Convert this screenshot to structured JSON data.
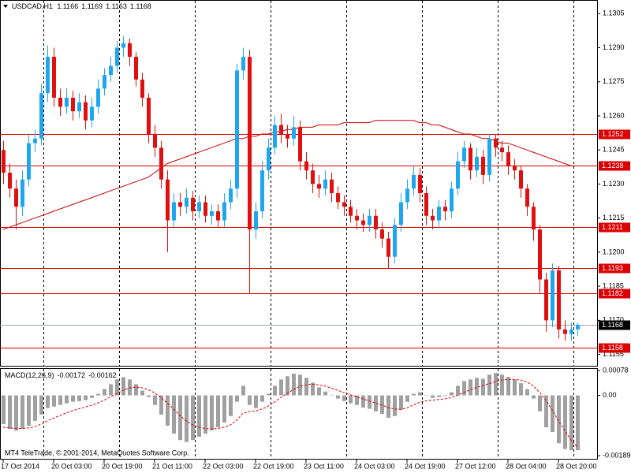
{
  "watermark": "MT4 TeleTrade, © 2001-2014, MetaQuotes Software Corp.",
  "chart_data": [
    {
      "type": "candlestick",
      "symbol": "USDCAD,H1",
      "header_values": [
        1.1166,
        1.1169,
        1.1163,
        1.1168
      ],
      "categories": [
        "17 Oct 2014",
        null,
        null,
        null,
        null,
        null,
        null,
        null,
        "20 Oct 03:00",
        null,
        null,
        null,
        null,
        null,
        null,
        null,
        "20 Oct 19:00",
        null,
        null,
        null,
        null,
        null,
        null,
        null,
        "21 Oct 11:00",
        null,
        null,
        null,
        null,
        null,
        null,
        null,
        "22 Oct 03:00",
        null,
        null,
        null,
        null,
        null,
        null,
        null,
        "22 Oct 19:00",
        null,
        null,
        null,
        null,
        null,
        null,
        null,
        "23 Oct 11:00",
        null,
        null,
        null,
        null,
        null,
        null,
        null,
        "24 Oct 03:00",
        null,
        null,
        null,
        null,
        null,
        null,
        null,
        "24 Oct 19:00",
        null,
        null,
        null,
        null,
        null,
        null,
        null,
        "27 Oct 12:00",
        null,
        null,
        null,
        null,
        null,
        null,
        null,
        "28 Oct 04:00",
        null,
        null,
        null,
        null,
        null,
        null,
        null,
        "28 Oct 20:00",
        null,
        null,
        null
      ],
      "open": [
        1.1245,
        1.1235,
        1.1228,
        1.122,
        1.1232,
        1.1248,
        1.125,
        1.127,
        1.1286,
        1.1268,
        1.1264,
        1.1268,
        1.1262,
        1.1266,
        1.1258,
        1.1264,
        1.1272,
        1.1278,
        1.1282,
        1.129,
        1.1292,
        1.1286,
        1.1276,
        1.1268,
        1.1252,
        1.1246,
        1.1232,
        1.1214,
        1.1222,
        1.122,
        1.1224,
        1.1218,
        1.1222,
        1.1216,
        1.1218,
        1.1214,
        1.1222,
        1.1228,
        1.128,
        1.1286,
        1.121,
        1.1218,
        1.1236,
        1.1246,
        1.1256,
        1.1252,
        1.125,
        1.1255,
        1.124,
        1.1236,
        1.123,
        1.1228,
        1.1232,
        1.1226,
        1.1222,
        1.122,
        1.1216,
        1.1214,
        1.1212,
        1.1216,
        1.121,
        1.1206,
        1.1198,
        1.1212,
        1.1222,
        1.1228,
        1.1234,
        1.1226,
        1.1216,
        1.1214,
        1.122,
        1.1218,
        1.1228,
        1.124,
        1.1246,
        1.1236,
        1.1242,
        1.1234,
        1.125,
        1.1246,
        1.1244,
        1.1238,
        1.1236,
        1.1228,
        1.122,
        1.121,
        1.1188,
        1.117,
        1.1192,
        1.1166,
        1.1164,
        1.1166
      ],
      "high": [
        1.1249,
        1.1239,
        1.1232,
        1.1236,
        1.1252,
        1.1254,
        1.1274,
        1.1291,
        1.129,
        1.1272,
        1.1272,
        1.1271,
        1.127,
        1.1269,
        1.1268,
        1.1276,
        1.1281,
        1.1286,
        1.1293,
        1.1295,
        1.1294,
        1.1288,
        1.1279,
        1.127,
        1.1256,
        1.1249,
        1.1236,
        1.1226,
        1.1226,
        1.1228,
        1.1227,
        1.1225,
        1.1225,
        1.1221,
        1.1221,
        1.1226,
        1.1232,
        1.1283,
        1.129,
        1.1289,
        1.1222,
        1.124,
        1.125,
        1.126,
        1.1261,
        1.1256,
        1.126,
        1.1258,
        1.1244,
        1.1239,
        1.1234,
        1.1236,
        1.1235,
        1.1229,
        1.1225,
        1.1223,
        1.1219,
        1.1217,
        1.1219,
        1.1219,
        1.1213,
        1.1209,
        1.1215,
        1.1226,
        1.1232,
        1.1238,
        1.1237,
        1.1229,
        1.1219,
        1.1223,
        1.1223,
        1.1231,
        1.1244,
        1.1249,
        1.1248,
        1.1246,
        1.1245,
        1.1252,
        1.1252,
        1.1249,
        1.1247,
        1.1241,
        1.1238,
        1.123,
        1.1222,
        1.1212,
        1.1191,
        1.1195,
        1.1194,
        1.117,
        1.1169,
        1.1169
      ],
      "low": [
        1.123,
        1.1224,
        1.121,
        1.1216,
        1.1229,
        1.1244,
        1.1247,
        1.1266,
        1.1264,
        1.126,
        1.1261,
        1.1258,
        1.1259,
        1.1254,
        1.1255,
        1.1261,
        1.1269,
        1.1275,
        1.1279,
        1.1286,
        1.1282,
        1.1273,
        1.1264,
        1.1248,
        1.1242,
        1.1228,
        1.12,
        1.1211,
        1.1216,
        1.1217,
        1.1214,
        1.1215,
        1.1213,
        1.1212,
        1.1211,
        1.1211,
        1.1219,
        1.1224,
        1.1276,
        1.1182,
        1.1206,
        1.1215,
        1.1232,
        1.1243,
        1.1248,
        1.1246,
        1.1247,
        1.1236,
        1.1232,
        1.1226,
        1.1224,
        1.1225,
        1.1222,
        1.1219,
        1.1216,
        1.1213,
        1.121,
        1.1209,
        1.1209,
        1.1206,
        1.1202,
        1.1193,
        1.1195,
        1.1209,
        1.1219,
        1.1225,
        1.1222,
        1.1212,
        1.121,
        1.1211,
        1.1214,
        1.1215,
        1.1225,
        1.1237,
        1.1232,
        1.1233,
        1.123,
        1.1231,
        1.1242,
        1.124,
        1.1234,
        1.1232,
        1.1224,
        1.1216,
        1.1205,
        1.1182,
        1.1165,
        1.1167,
        1.1162,
        1.1161,
        1.1161,
        1.1163
      ],
      "close": [
        1.1235,
        1.1228,
        1.122,
        1.1232,
        1.1248,
        1.125,
        1.127,
        1.1286,
        1.1268,
        1.1264,
        1.1268,
        1.1262,
        1.1266,
        1.1258,
        1.1264,
        1.1272,
        1.1278,
        1.1282,
        1.129,
        1.1292,
        1.1286,
        1.1276,
        1.1268,
        1.1252,
        1.1246,
        1.1232,
        1.1214,
        1.1222,
        1.122,
        1.1224,
        1.1218,
        1.1222,
        1.1216,
        1.1218,
        1.1214,
        1.1222,
        1.1228,
        1.128,
        1.1286,
        1.121,
        1.1218,
        1.1236,
        1.1246,
        1.1256,
        1.1252,
        1.125,
        1.1255,
        1.124,
        1.1236,
        1.123,
        1.1228,
        1.1232,
        1.1226,
        1.1222,
        1.122,
        1.1216,
        1.1214,
        1.1212,
        1.1216,
        1.121,
        1.1206,
        1.1198,
        1.1212,
        1.1222,
        1.1228,
        1.1234,
        1.1226,
        1.1216,
        1.1214,
        1.122,
        1.1218,
        1.1228,
        1.124,
        1.1246,
        1.1236,
        1.1242,
        1.1234,
        1.125,
        1.1246,
        1.1244,
        1.1238,
        1.1236,
        1.1228,
        1.122,
        1.121,
        1.1188,
        1.117,
        1.1192,
        1.1166,
        1.1164,
        1.1166,
        1.1168
      ],
      "ma": [
        1.121,
        1.1211,
        1.1212,
        1.1213,
        1.1214,
        1.1215,
        1.1216,
        1.1217,
        1.1218,
        1.1219,
        1.122,
        1.1221,
        1.1222,
        1.1223,
        1.1224,
        1.1225,
        1.1226,
        1.1227,
        1.1228,
        1.1229,
        1.123,
        1.1231,
        1.1232,
        1.1233,
        1.1235,
        1.1237,
        1.1239,
        1.124,
        1.1241,
        1.1242,
        1.1243,
        1.1244,
        1.1245,
        1.1246,
        1.1247,
        1.1248,
        1.1249,
        1.125,
        1.125,
        1.1251,
        1.1251,
        1.1252,
        1.1252,
        1.1253,
        1.1253,
        1.1254,
        1.1254,
        1.1255,
        1.1255,
        1.1255,
        1.1256,
        1.1256,
        1.1256,
        1.1256,
        1.1257,
        1.1257,
        1.1257,
        1.1257,
        1.1257,
        1.1258,
        1.1258,
        1.1258,
        1.1258,
        1.1258,
        1.1258,
        1.1258,
        1.1257,
        1.1257,
        1.1256,
        1.1256,
        1.1255,
        1.1254,
        1.1253,
        1.1252,
        1.1252,
        1.1251,
        1.125,
        1.125,
        1.1249,
        1.1248,
        1.1248,
        1.1247,
        1.1246,
        1.1245,
        1.1244,
        1.1243,
        1.1242,
        1.1241,
        1.124,
        1.1239,
        1.1238,
        1.1238
      ],
      "levels": [
        1.1252,
        1.1238,
        1.1211,
        1.1193,
        1.1182,
        1.1158
      ],
      "current_price": 1.1168,
      "up_color": "#1ea7f0",
      "down_color": "#e01010",
      "ma_color": "#cc0000",
      "level_color": "#dd0000",
      "ylim": [
        1.115,
        1.1311
      ],
      "yticks": [
        1.1305,
        {
          "value": 1.129,
          "label": "1.1290"
        },
        1.1275,
        {
          "value": 1.126,
          "label": "1.1260"
        },
        1.1245,
        {
          "value": 1.123,
          "label": "1.1230"
        },
        1.1215,
        {
          "value": 1.12,
          "label": "1.1200"
        },
        1.1185,
        {
          "value": 1.117,
          "label": "1.1170"
        },
        1.1155
      ]
    },
    {
      "type": "macd",
      "title": "MACD(12,26,9)",
      "current": [
        -0.00172,
        -0.00162
      ],
      "values": [
        -0.0009,
        -0.00105,
        -0.0011,
        -0.00105,
        -0.00095,
        -0.0008,
        -0.0006,
        -0.0004,
        -0.00035,
        -0.0003,
        -0.00025,
        -0.0002,
        -0.00018,
        -0.00015,
        -8e-05,
        5e-05,
        0.0002,
        0.00035,
        0.0005,
        0.00057,
        0.0005,
        0.00035,
        0.00015,
        -5e-05,
        -0.0003,
        -0.0006,
        -0.00095,
        -0.0012,
        -0.0014,
        -0.00146,
        -0.0014,
        -0.0013,
        -0.0012,
        -0.0011,
        -0.001,
        -0.00085,
        -0.00065,
        -0.0002,
        0.0003,
        -0.0003,
        -0.0004,
        -0.0002,
        5e-05,
        0.0003,
        0.0005,
        0.0006,
        0.00068,
        0.00065,
        0.00055,
        0.0004,
        0.00025,
        0.00012,
        0,
        -0.0001,
        -0.00018,
        -0.00025,
        -0.0003,
        -0.00038,
        -0.00042,
        -0.0005,
        -0.00058,
        -0.0007,
        -0.00065,
        -0.00045,
        -0.0002,
        5e-05,
        0.0001,
        0,
        -8e-05,
        -5e-05,
        -2e-05,
        0.0001,
        0.0003,
        0.00045,
        0.0005,
        0.00055,
        0.00052,
        0.00065,
        0.0007,
        0.00065,
        0.00058,
        0.0005,
        0.00038,
        0.0002,
        -0.0001,
        -0.0005,
        -0.001,
        -0.00115,
        -0.0015,
        -0.00168,
        -0.00172,
        -0.00172
      ],
      "signal": [
        -0.001,
        -0.00102,
        -0.00104,
        -0.00104,
        -0.00102,
        -0.00098,
        -0.0009,
        -0.0008,
        -0.00071,
        -0.00063,
        -0.00055,
        -0.00048,
        -0.00042,
        -0.00036,
        -0.00031,
        -0.00024,
        -0.00015,
        -5e-05,
        6e-05,
        0.00016,
        0.00023,
        0.00026,
        0.00024,
        0.00018,
        8e-05,
        -6e-05,
        -0.00024,
        -0.00043,
        -0.00063,
        -0.0008,
        -0.00092,
        -0.001,
        -0.00104,
        -0.00105,
        -0.00104,
        -0.001,
        -0.00093,
        -0.00078,
        -0.00056,
        -0.00051,
        -0.00049,
        -0.00043,
        -0.00034,
        -0.00021,
        -7e-05,
        6e-05,
        0.00018,
        0.00028,
        0.00033,
        0.00035,
        0.00033,
        0.00029,
        0.00023,
        0.00016,
        9e-05,
        2e-05,
        -4e-05,
        -0.00011,
        -0.00017,
        -0.00024,
        -0.0003,
        -0.00038,
        -0.00043,
        -0.00044,
        -0.00039,
        -0.0003,
        -0.00022,
        -0.00017,
        -0.00015,
        -0.00013,
        -0.00011,
        -7e-05,
        0,
        9e-05,
        0.00017,
        0.00025,
        0.0003,
        0.00037,
        0.00043,
        0.00048,
        0.0005,
        0.0005,
        0.00048,
        0.00042,
        0.0003,
        0.0001,
        -0.00015,
        -0.00045,
        -0.0008,
        -0.0011,
        -0.0014,
        -0.00162
      ],
      "hist_color": "#a0a0a0",
      "signal_color": "#dd0000",
      "ylim": [
        -0.00189,
        0.00078
      ],
      "yticks": [
        0.00078,
        {
          "value": 0,
          "label": "0.00"
        },
        -0.00189
      ]
    }
  ]
}
